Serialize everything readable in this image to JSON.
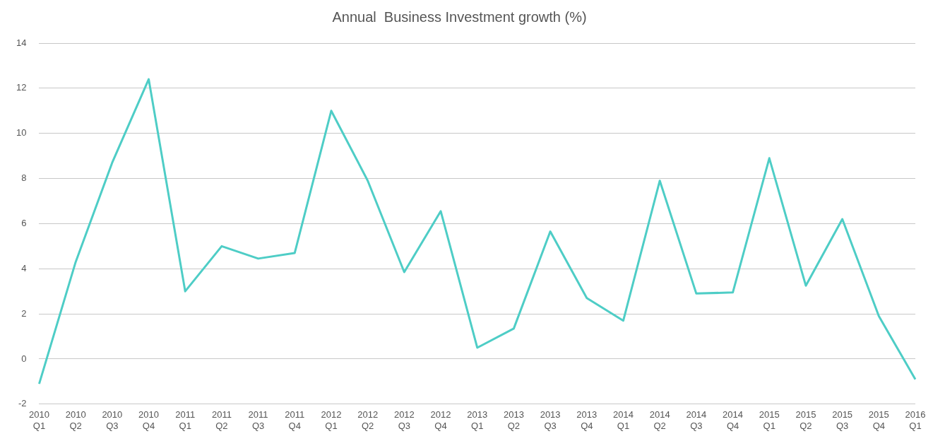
{
  "chart_data": {
    "type": "line",
    "title": "Annual  Business Investment growth (%)",
    "categories": [
      "2010 Q1",
      "2010 Q2",
      "2010 Q3",
      "2010 Q4",
      "2011 Q1",
      "2011 Q2",
      "2011 Q3",
      "2011 Q4",
      "2012 Q1",
      "2012 Q2",
      "2012 Q3",
      "2012 Q4",
      "2013 Q1",
      "2013 Q2",
      "2013 Q3",
      "2013 Q4",
      "2014 Q1",
      "2014 Q2",
      "2014 Q3",
      "2014 Q4",
      "2015 Q1",
      "2015 Q2",
      "2015 Q3",
      "2015 Q4",
      "2016 Q1"
    ],
    "series": [
      {
        "color": "#4ecdc6",
        "values": [
          -1.1,
          4.3,
          8.7,
          12.4,
          3.0,
          5.0,
          4.45,
          4.7,
          11.0,
          7.9,
          3.85,
          6.55,
          0.5,
          1.35,
          5.65,
          2.7,
          1.7,
          7.9,
          2.9,
          2.95,
          8.9,
          3.25,
          6.2,
          1.9,
          -0.9
        ]
      }
    ],
    "ylim": [
      -2,
      14
    ],
    "yticks": [
      -2,
      0,
      2,
      4,
      6,
      8,
      10,
      12,
      14
    ],
    "grid": "y",
    "legend": false,
    "marker": "none",
    "line_style": "solid"
  }
}
